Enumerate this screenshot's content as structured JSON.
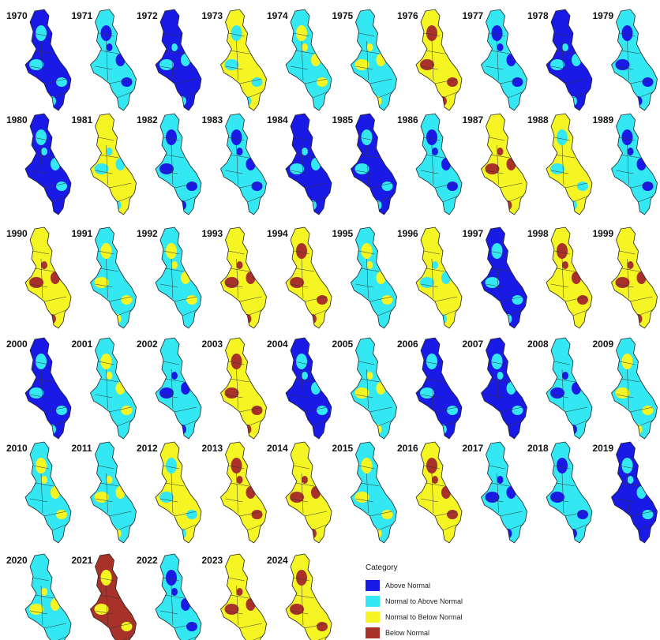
{
  "legend": {
    "title": "Category",
    "items": [
      {
        "name": "Above Normal",
        "color": "#1a1ae6"
      },
      {
        "name": "Normal to Above Normal",
        "color": "#33e8f2"
      },
      {
        "name": "Normal to Below Normal",
        "color": "#f5f524"
      },
      {
        "name": "Below Normal",
        "color": "#a8322a"
      }
    ]
  },
  "maps": [
    {
      "year": "1970",
      "main": 0,
      "accent": 1
    },
    {
      "year": "1971",
      "main": 1,
      "accent": 0
    },
    {
      "year": "1972",
      "main": 0,
      "accent": 1
    },
    {
      "year": "1973",
      "main": 2,
      "accent": 1
    },
    {
      "year": "1974",
      "main": 1,
      "accent": 2
    },
    {
      "year": "1975",
      "main": 1,
      "accent": 2
    },
    {
      "year": "1976",
      "main": 2,
      "accent": 3
    },
    {
      "year": "1977",
      "main": 1,
      "accent": 0
    },
    {
      "year": "1978",
      "main": 0,
      "accent": 1
    },
    {
      "year": "1979",
      "main": 1,
      "accent": 0
    },
    {
      "year": "1980",
      "main": 0,
      "accent": 1
    },
    {
      "year": "1981",
      "main": 2,
      "accent": 1
    },
    {
      "year": "1982",
      "main": 1,
      "accent": 0
    },
    {
      "year": "1983",
      "main": 1,
      "accent": 0
    },
    {
      "year": "1984",
      "main": 0,
      "accent": 1
    },
    {
      "year": "1985",
      "main": 0,
      "accent": 1
    },
    {
      "year": "1986",
      "main": 1,
      "accent": 0
    },
    {
      "year": "1987",
      "main": 2,
      "accent": 3
    },
    {
      "year": "1988",
      "main": 2,
      "accent": 1
    },
    {
      "year": "1989",
      "main": 1,
      "accent": 0
    },
    {
      "year": "1990",
      "main": 2,
      "accent": 3
    },
    {
      "year": "1991",
      "main": 1,
      "accent": 2
    },
    {
      "year": "1992",
      "main": 1,
      "accent": 2
    },
    {
      "year": "1993",
      "main": 2,
      "accent": 3
    },
    {
      "year": "1994",
      "main": 2,
      "accent": 3
    },
    {
      "year": "1995",
      "main": 1,
      "accent": 2
    },
    {
      "year": "1996",
      "main": 2,
      "accent": 1
    },
    {
      "year": "1997",
      "main": 0,
      "accent": 1
    },
    {
      "year": "1998",
      "main": 2,
      "accent": 3
    },
    {
      "year": "1999",
      "main": 2,
      "accent": 3
    },
    {
      "year": "2000",
      "main": 0,
      "accent": 1
    },
    {
      "year": "2001",
      "main": 1,
      "accent": 2
    },
    {
      "year": "2002",
      "main": 1,
      "accent": 0
    },
    {
      "year": "2003",
      "main": 2,
      "accent": 3
    },
    {
      "year": "2004",
      "main": 0,
      "accent": 1
    },
    {
      "year": "2005",
      "main": 1,
      "accent": 2
    },
    {
      "year": "2006",
      "main": 0,
      "accent": 1
    },
    {
      "year": "2007",
      "main": 0,
      "accent": 1
    },
    {
      "year": "2008",
      "main": 1,
      "accent": 0
    },
    {
      "year": "2009",
      "main": 1,
      "accent": 2
    },
    {
      "year": "2010",
      "main": 1,
      "accent": 2
    },
    {
      "year": "2011",
      "main": 1,
      "accent": 2
    },
    {
      "year": "2012",
      "main": 2,
      "accent": 1
    },
    {
      "year": "2013",
      "main": 2,
      "accent": 3
    },
    {
      "year": "2014",
      "main": 2,
      "accent": 3
    },
    {
      "year": "2015",
      "main": 1,
      "accent": 2
    },
    {
      "year": "2016",
      "main": 2,
      "accent": 3
    },
    {
      "year": "2017",
      "main": 1,
      "accent": 0
    },
    {
      "year": "2018",
      "main": 1,
      "accent": 0
    },
    {
      "year": "2019",
      "main": 0,
      "accent": 1
    },
    {
      "year": "2020",
      "main": 1,
      "accent": 2
    },
    {
      "year": "2021",
      "main": 3,
      "accent": 2
    },
    {
      "year": "2022",
      "main": 1,
      "accent": 0
    },
    {
      "year": "2023",
      "main": 2,
      "accent": 3
    },
    {
      "year": "2024",
      "main": 2,
      "accent": 3
    }
  ]
}
